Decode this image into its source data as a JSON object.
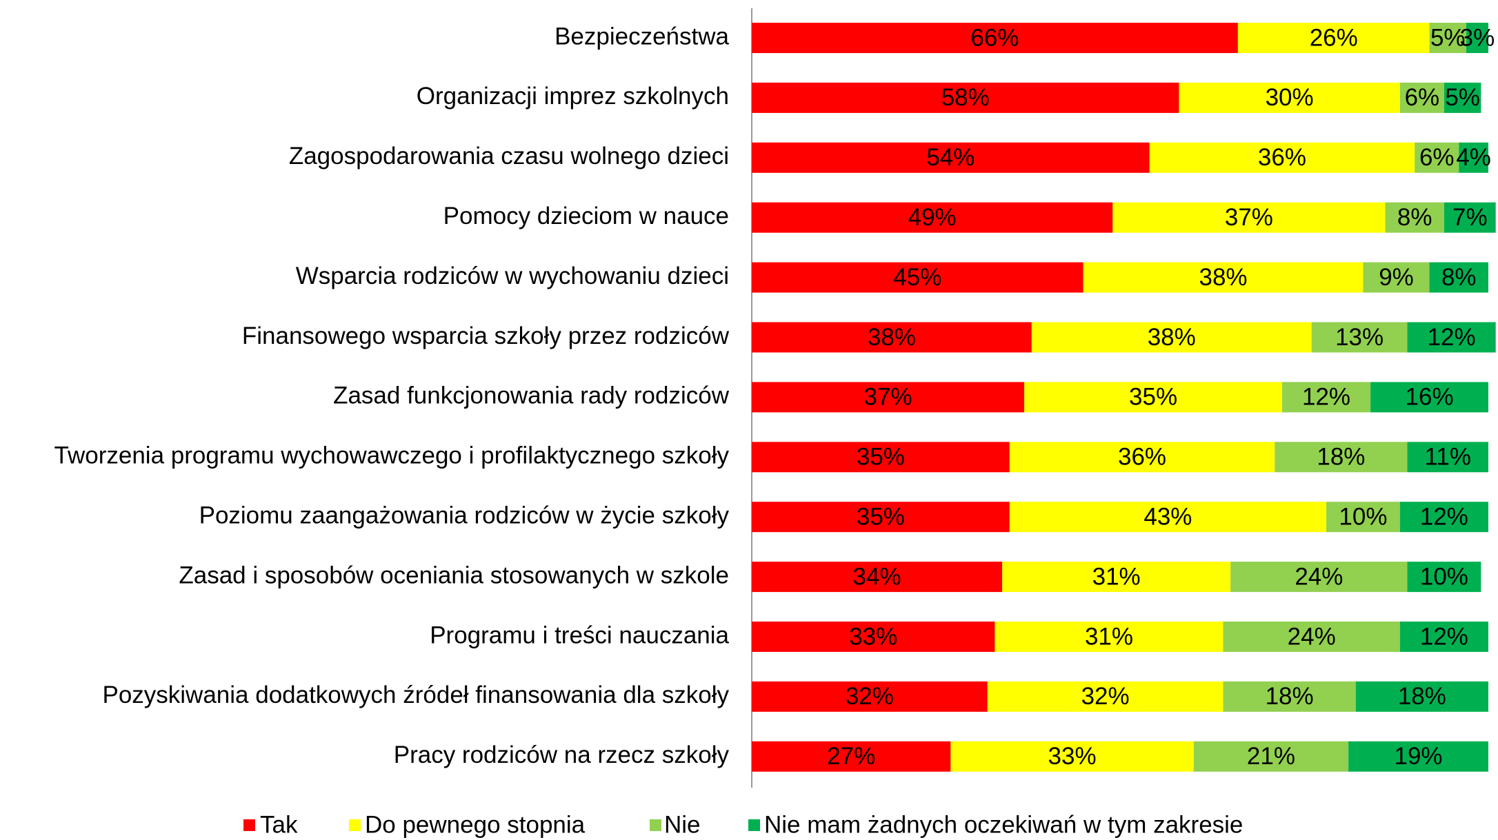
{
  "chart_data": {
    "type": "stacked_bar_horizontal",
    "categories": [
      "Bezpieczeństwa",
      "Organizacji imprez szkolnych",
      "Zagospodarowania czasu wolnego dzieci",
      "Pomocy dzieciom w nauce",
      "Wsparcia rodziców w wychowaniu dzieci",
      "Finansowego wsparcia szkoły przez rodziców",
      "Zasad funkcjonowania rady rodziców",
      "Tworzenia programu wychowawczego i profilaktycznego szkoły",
      "Poziomu zaangażowania rodziców w życie szkoły",
      "Zasad i sposobów oceniania stosowanych w szkole",
      "Programu i treści nauczania",
      "Pozyskiwania dodatkowych źródeł finansowania dla szkoły",
      "Pracy rodziców na rzecz szkoły"
    ],
    "series": [
      {
        "name": "Tak",
        "color": "#ff0000",
        "values": [
          66,
          58,
          54,
          49,
          45,
          38,
          37,
          35,
          35,
          34,
          33,
          32,
          27
        ],
        "value_labels": [
          "66%",
          "58%",
          "54%",
          "49%",
          "45%",
          "38%",
          "37%",
          "35%",
          "35%",
          "34%",
          "33%",
          "32%",
          "27%"
        ]
      },
      {
        "name": "Do pewnego stopnia",
        "color": "#ffff00",
        "values": [
          26,
          30,
          36,
          37,
          38,
          38,
          35,
          36,
          43,
          31,
          31,
          32,
          33
        ],
        "value_labels": [
          "26%",
          "30%",
          "36%",
          "37%",
          "38%",
          "38%",
          "35%",
          "36%",
          "43%",
          "31%",
          "31%",
          "32%",
          "33%"
        ]
      },
      {
        "name": "Nie",
        "color": "#92d050",
        "values": [
          5,
          6,
          6,
          8,
          9,
          13,
          12,
          18,
          10,
          24,
          24,
          18,
          21
        ],
        "value_labels": [
          "5%",
          "6%",
          "6%",
          "8%",
          "9%",
          "13%",
          "12%",
          "18%",
          "10%",
          "24%",
          "24%",
          "18%",
          "21%"
        ]
      },
      {
        "name": "Nie mam żadnych oczekiwań w tym zakresie",
        "color": "#00b050",
        "values": [
          3,
          5,
          4,
          7,
          8,
          12,
          16,
          11,
          12,
          10,
          12,
          18,
          19
        ],
        "value_labels": [
          "3%",
          "5%",
          "4%",
          "7%",
          "8%",
          "12%",
          "16%",
          "11%",
          "12%",
          "10%",
          "12%",
          "18%",
          "19%"
        ]
      }
    ],
    "xlim": [
      0,
      100
    ],
    "legend": "bottom"
  }
}
